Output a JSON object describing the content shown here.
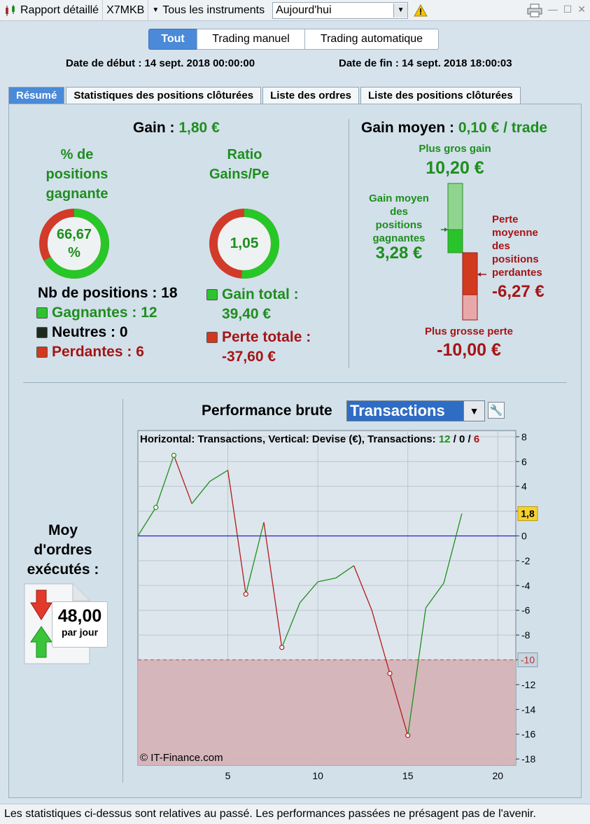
{
  "toolbar": {
    "title": "Rapport détaillé",
    "symbol": "X7MKB",
    "instruments": "Tous les instruments",
    "period": "Aujourd'hui"
  },
  "modes": [
    "Tout",
    "Trading manuel",
    "Trading automatique"
  ],
  "dates": {
    "start": "Date de début : 14 sept. 2018 00:00:00",
    "end": "Date de fin : 14 sept. 2018 18:00:03"
  },
  "tabs": [
    "Résumé",
    "Statistiques des positions clôturées",
    "Liste des ordres",
    "Liste des positions clôturées"
  ],
  "summary": {
    "gain_label": "Gain :",
    "gain_value": "1,80 €",
    "pct_title_1": "% de",
    "pct_title_2": "positions",
    "pct_title_3": "gagnante",
    "pct_value_1": "66,67",
    "pct_value_2": "%",
    "win_pct": 66.67,
    "ratio_title_1": "Ratio",
    "ratio_title_2": "Gains/Pe",
    "ratio_value": "1,05",
    "ratio_fraction": 0.512,
    "nb_positions": "Nb de positions : 18",
    "winners": "Gagnantes : 12",
    "neutral": "Neutres : 0",
    "losers": "Perdantes : 6",
    "total_gain_label": "Gain total :",
    "total_gain_value": "39,40 €",
    "total_loss_label": "Perte totale :",
    "total_loss_value": "-37,60 €"
  },
  "avg": {
    "title": "Gain moyen :",
    "title_value": "0,10 € / trade",
    "max_gain_label": "Plus gros gain",
    "max_gain_value": "10,20 €",
    "avg_win_lines": [
      "Gain moyen",
      "des",
      "positions",
      "gagnantes"
    ],
    "avg_win_value": "3,28 €",
    "avg_loss_lines": [
      "Perte",
      "moyenne",
      "des",
      "positions",
      "perdantes"
    ],
    "avg_loss_value": "-6,27 €",
    "max_loss_label": "Plus grosse perte",
    "max_loss_value": "-10,00 €"
  },
  "orders": {
    "title_1": "Moy",
    "title_2": "d'ordres",
    "title_3": "exécutés :",
    "value": "48,00",
    "unit": "par jour"
  },
  "performance": {
    "title": "Performance brute",
    "selector": "Transactions",
    "legend_prefix": "Horizontal: Transactions, Vertical: Devise (€), Transactions:",
    "legend_win": "12",
    "legend_sep1": "/",
    "legend_neutral": "0",
    "legend_sep2": "/",
    "legend_loss": "6",
    "watermark": "© IT-Finance.com",
    "last_value_tag": "1,8",
    "threshold_tag": "-10"
  },
  "chart_data": {
    "type": "line",
    "x": [
      0,
      1,
      2,
      3,
      4,
      5,
      6,
      7,
      8,
      9,
      10,
      11,
      12,
      13,
      14,
      15,
      16,
      17,
      18
    ],
    "y": [
      0,
      2.3,
      6.5,
      2.6,
      4.4,
      5.3,
      -4.7,
      1.1,
      -9.0,
      -5.4,
      -3.7,
      -3.4,
      -2.4,
      -6.0,
      -11.1,
      -16.1,
      -5.8,
      -3.8,
      1.8
    ],
    "xlim": [
      0,
      21
    ],
    "ylim": [
      -18.5,
      8.5
    ],
    "xticks": [
      5,
      10,
      15,
      20
    ],
    "yticks": [
      8,
      6,
      4,
      2,
      0,
      -2,
      -4,
      -6,
      -8,
      -10,
      -12,
      -14,
      -16,
      -18
    ],
    "threshold": -10,
    "markers_x": [
      1,
      2,
      6,
      8,
      14,
      15
    ],
    "colors": {
      "up": "#1f8f1f",
      "down": "#b31b1b",
      "zero": "#2222cc",
      "zone": "#d4b3b8"
    }
  },
  "footer": "Les statistiques ci-dessus sont relatives au passé. Les performances passées ne présagent pas de l'avenir."
}
